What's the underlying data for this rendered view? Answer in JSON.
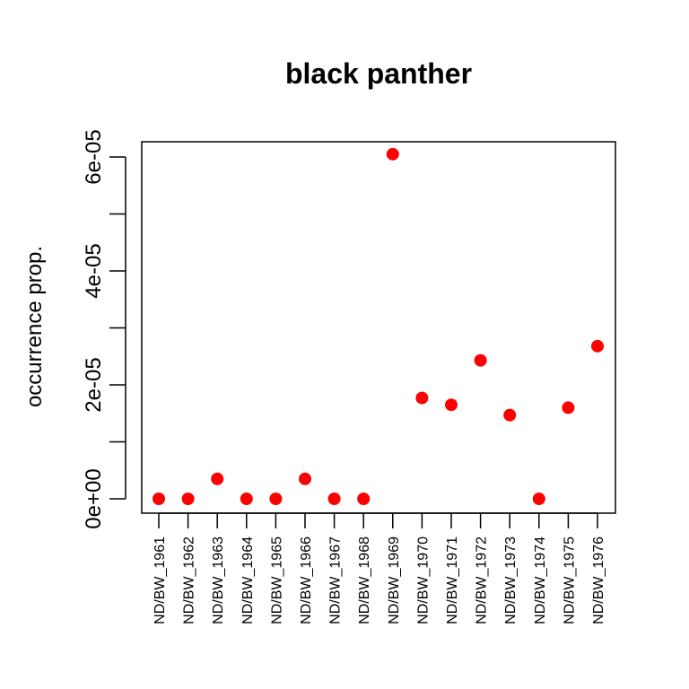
{
  "chart_data": {
    "type": "scatter",
    "title": "black panther",
    "xlabel": "",
    "ylabel": "occurrence prop.",
    "categories": [
      "ND/BW_1961",
      "ND/BW_1962",
      "ND/BW_1963",
      "ND/BW_1964",
      "ND/BW_1965",
      "ND/BW_1966",
      "ND/BW_1967",
      "ND/BW_1968",
      "ND/BW_1969",
      "ND/BW_1970",
      "ND/BW_1971",
      "ND/BW_1972",
      "ND/BW_1973",
      "ND/BW_1974",
      "ND/BW_1975",
      "ND/BW_1976"
    ],
    "values": [
      0,
      0,
      3.5e-06,
      0,
      0,
      3.5e-06,
      0,
      0,
      6.05e-05,
      1.77e-05,
      1.65e-05,
      2.43e-05,
      1.47e-05,
      0,
      1.6e-05,
      2.68e-05
    ],
    "ylim": [
      0,
      6e-05
    ],
    "yticks": [
      0,
      2e-05,
      4e-05,
      6e-05
    ],
    "ytick_labels": [
      "0e+00",
      "2e-05",
      "4e-05",
      "6e-05"
    ],
    "minor_yticks": [
      1e-05,
      3e-05,
      5e-05
    ],
    "grid": false,
    "legend": "none",
    "colors": {
      "point": "#ff0000",
      "axis": "#000000",
      "background": "#ffffff"
    }
  }
}
